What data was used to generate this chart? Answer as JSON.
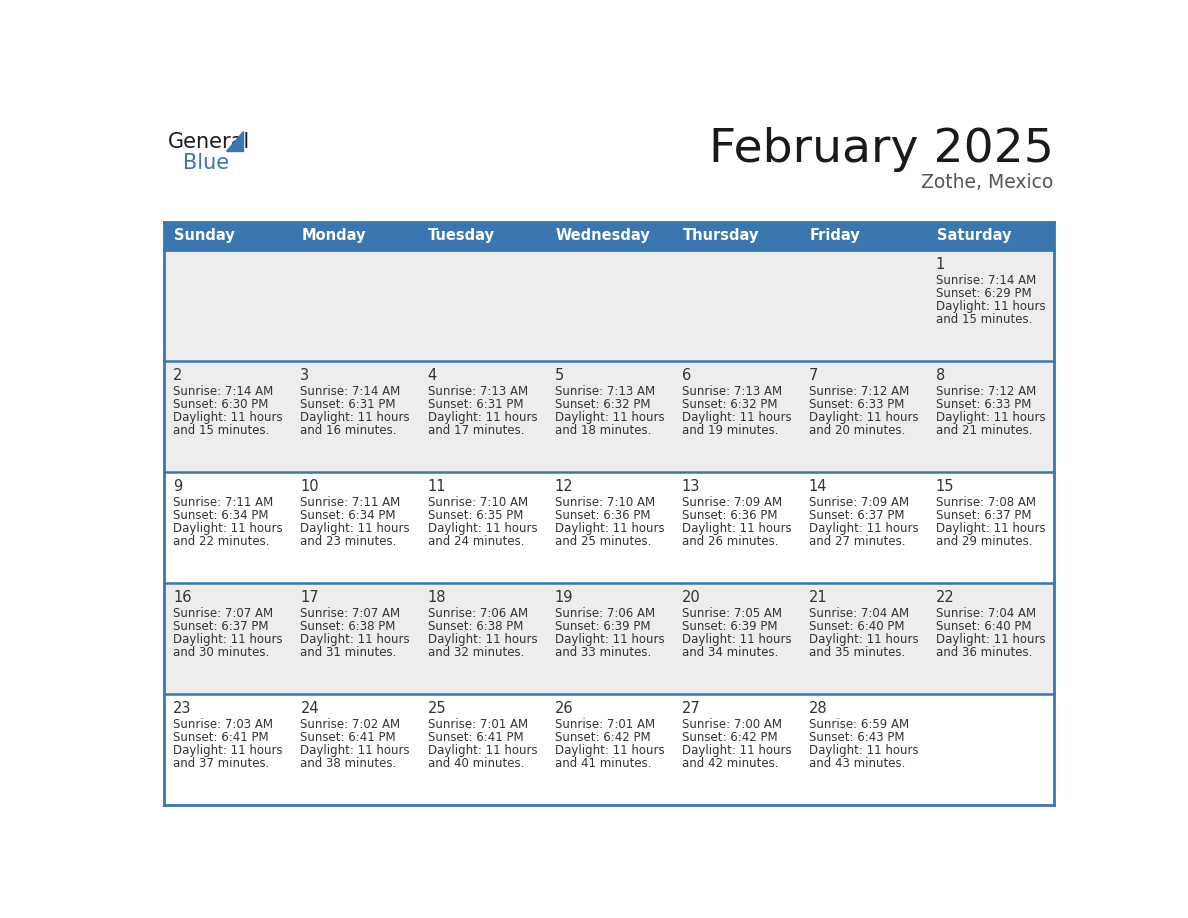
{
  "title": "February 2025",
  "subtitle": "Zothe, Mexico",
  "header_color": "#3A76B0",
  "header_text_color": "#FFFFFF",
  "days_of_week": [
    "Sunday",
    "Monday",
    "Tuesday",
    "Wednesday",
    "Thursday",
    "Friday",
    "Saturday"
  ],
  "bg_color": "#FFFFFF",
  "cell_bg_row0": "#EEEEEE",
  "cell_bg_row1": "#EEEEEE",
  "cell_bg_row2": "#FFFFFF",
  "cell_bg_row3": "#EEEEEE",
  "cell_bg_row4": "#FFFFFF",
  "row_backgrounds": [
    "#EDEDED",
    "#EDEDED",
    "#FFFFFF",
    "#EDEDED",
    "#FFFFFF"
  ],
  "day_number_color": "#333333",
  "info_text_color": "#333333",
  "border_color": "#3A76B0",
  "separator_color": "#3A76B0",
  "calendar": [
    [
      null,
      null,
      null,
      null,
      null,
      null,
      {
        "day": 1,
        "sunrise": "7:14 AM",
        "sunset": "6:29 PM",
        "daylight": "11 hours and 15 minutes."
      }
    ],
    [
      {
        "day": 2,
        "sunrise": "7:14 AM",
        "sunset": "6:30 PM",
        "daylight": "11 hours and 15 minutes."
      },
      {
        "day": 3,
        "sunrise": "7:14 AM",
        "sunset": "6:31 PM",
        "daylight": "11 hours and 16 minutes."
      },
      {
        "day": 4,
        "sunrise": "7:13 AM",
        "sunset": "6:31 PM",
        "daylight": "11 hours and 17 minutes."
      },
      {
        "day": 5,
        "sunrise": "7:13 AM",
        "sunset": "6:32 PM",
        "daylight": "11 hours and 18 minutes."
      },
      {
        "day": 6,
        "sunrise": "7:13 AM",
        "sunset": "6:32 PM",
        "daylight": "11 hours and 19 minutes."
      },
      {
        "day": 7,
        "sunrise": "7:12 AM",
        "sunset": "6:33 PM",
        "daylight": "11 hours and 20 minutes."
      },
      {
        "day": 8,
        "sunrise": "7:12 AM",
        "sunset": "6:33 PM",
        "daylight": "11 hours and 21 minutes."
      }
    ],
    [
      {
        "day": 9,
        "sunrise": "7:11 AM",
        "sunset": "6:34 PM",
        "daylight": "11 hours and 22 minutes."
      },
      {
        "day": 10,
        "sunrise": "7:11 AM",
        "sunset": "6:34 PM",
        "daylight": "11 hours and 23 minutes."
      },
      {
        "day": 11,
        "sunrise": "7:10 AM",
        "sunset": "6:35 PM",
        "daylight": "11 hours and 24 minutes."
      },
      {
        "day": 12,
        "sunrise": "7:10 AM",
        "sunset": "6:36 PM",
        "daylight": "11 hours and 25 minutes."
      },
      {
        "day": 13,
        "sunrise": "7:09 AM",
        "sunset": "6:36 PM",
        "daylight": "11 hours and 26 minutes."
      },
      {
        "day": 14,
        "sunrise": "7:09 AM",
        "sunset": "6:37 PM",
        "daylight": "11 hours and 27 minutes."
      },
      {
        "day": 15,
        "sunrise": "7:08 AM",
        "sunset": "6:37 PM",
        "daylight": "11 hours and 29 minutes."
      }
    ],
    [
      {
        "day": 16,
        "sunrise": "7:07 AM",
        "sunset": "6:37 PM",
        "daylight": "11 hours and 30 minutes."
      },
      {
        "day": 17,
        "sunrise": "7:07 AM",
        "sunset": "6:38 PM",
        "daylight": "11 hours and 31 minutes."
      },
      {
        "day": 18,
        "sunrise": "7:06 AM",
        "sunset": "6:38 PM",
        "daylight": "11 hours and 32 minutes."
      },
      {
        "day": 19,
        "sunrise": "7:06 AM",
        "sunset": "6:39 PM",
        "daylight": "11 hours and 33 minutes."
      },
      {
        "day": 20,
        "sunrise": "7:05 AM",
        "sunset": "6:39 PM",
        "daylight": "11 hours and 34 minutes."
      },
      {
        "day": 21,
        "sunrise": "7:04 AM",
        "sunset": "6:40 PM",
        "daylight": "11 hours and 35 minutes."
      },
      {
        "day": 22,
        "sunrise": "7:04 AM",
        "sunset": "6:40 PM",
        "daylight": "11 hours and 36 minutes."
      }
    ],
    [
      {
        "day": 23,
        "sunrise": "7:03 AM",
        "sunset": "6:41 PM",
        "daylight": "11 hours and 37 minutes."
      },
      {
        "day": 24,
        "sunrise": "7:02 AM",
        "sunset": "6:41 PM",
        "daylight": "11 hours and 38 minutes."
      },
      {
        "day": 25,
        "sunrise": "7:01 AM",
        "sunset": "6:41 PM",
        "daylight": "11 hours and 40 minutes."
      },
      {
        "day": 26,
        "sunrise": "7:01 AM",
        "sunset": "6:42 PM",
        "daylight": "11 hours and 41 minutes."
      },
      {
        "day": 27,
        "sunrise": "7:00 AM",
        "sunset": "6:42 PM",
        "daylight": "11 hours and 42 minutes."
      },
      {
        "day": 28,
        "sunrise": "6:59 AM",
        "sunset": "6:43 PM",
        "daylight": "11 hours and 43 minutes."
      },
      null
    ]
  ],
  "num_rows": 5,
  "num_cols": 7,
  "logo_general_color": "#1a1a1a",
  "logo_blue_color": "#3A76B0",
  "logo_triangle_color": "#3A76B0",
  "title_color": "#1a1a1a",
  "subtitle_color": "#555555"
}
